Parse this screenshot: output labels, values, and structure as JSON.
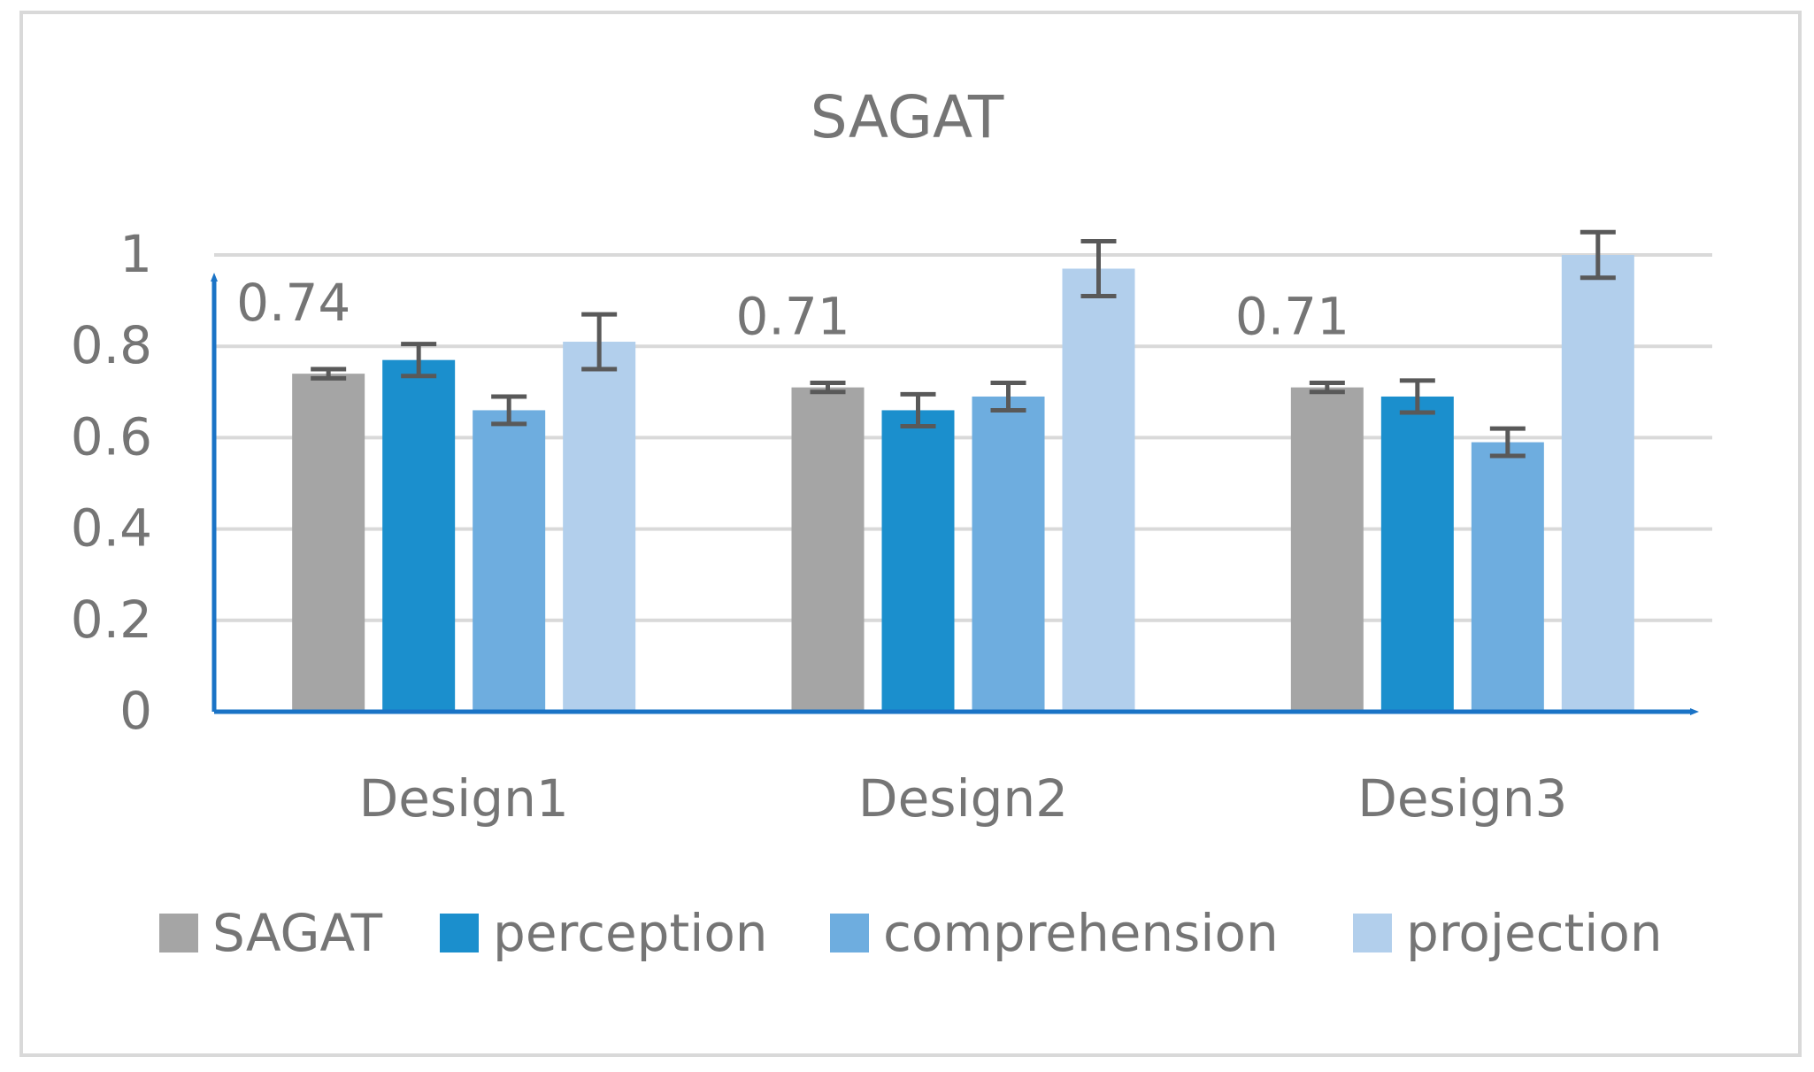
{
  "chart_data": {
    "type": "bar",
    "title": "SAGAT",
    "categories": [
      "Design1",
      "Design2",
      "Design3"
    ],
    "series": [
      {
        "name": "SAGAT",
        "values": [
          0.74,
          0.71,
          0.71
        ],
        "errors": [
          0.01,
          0.01,
          0.01
        ],
        "color": "#a5a5a5"
      },
      {
        "name": "perception",
        "values": [
          0.77,
          0.66,
          0.69
        ],
        "errors": [
          0.035,
          0.035,
          0.035
        ],
        "color": "#1b8fcd"
      },
      {
        "name": "comprehension",
        "values": [
          0.66,
          0.69,
          0.59
        ],
        "errors": [
          0.03,
          0.03,
          0.03
        ],
        "color": "#6eaddf"
      },
      {
        "name": "projection",
        "values": [
          0.81,
          0.97,
          1.0
        ],
        "errors": [
          0.06,
          0.06,
          0.05
        ],
        "color": "#b2cfec"
      }
    ],
    "data_labels": [
      {
        "category": "Design1",
        "text": "0.74"
      },
      {
        "category": "Design2",
        "text": "0.71"
      },
      {
        "category": "Design3",
        "text": "0.71"
      }
    ],
    "yticks": [
      "0",
      "0.2",
      "0.4",
      "0.6",
      "0.8",
      "1"
    ],
    "ylim": [
      0,
      1
    ],
    "xlabel": "",
    "ylabel": "",
    "grid": true,
    "legend": "bottom",
    "axis_color": "#1a73c6",
    "grid_color": "#d9d9d9",
    "error_color": "#595959"
  }
}
